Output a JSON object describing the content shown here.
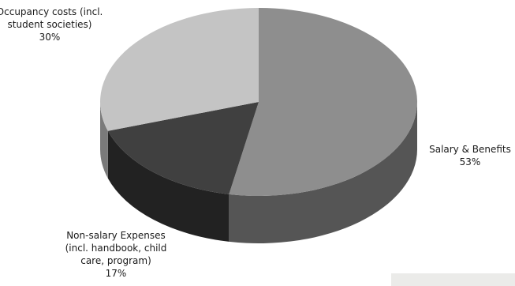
{
  "chart_data": {
    "type": "pie",
    "style": "3d",
    "title": "",
    "slices": [
      {
        "label": "Salary & Benefits",
        "label_lines": [
          "Salary & Benefits",
          "53%"
        ],
        "value": 53,
        "top_color": "#8e8e8e",
        "side_color": "#555555"
      },
      {
        "label": "Non-salary Expenses (incl. handbook, child care, program)",
        "label_lines": [
          "Non-salary Expenses",
          "(incl. handbook, child",
          "care, program)",
          "17%"
        ],
        "value": 17,
        "top_color": "#404040",
        "side_color": "#222222"
      },
      {
        "label": "Occupancy costs (incl. student societies)",
        "label_lines": [
          "Occupancy costs (incl.",
          "student societies)",
          "30%"
        ],
        "value": 30,
        "top_color": "#c4c4c4",
        "side_color": "#7a7a7a"
      }
    ],
    "legend": "none"
  }
}
